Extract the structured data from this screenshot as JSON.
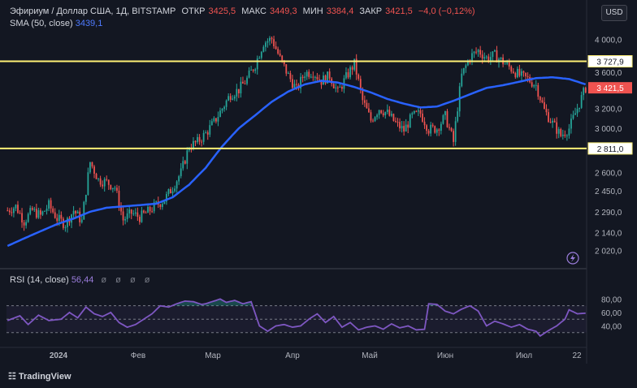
{
  "currency": "USD",
  "brand": "☷ TradingView",
  "ohlc": {
    "open_label": "ОТКР",
    "open": "3425,5",
    "high_label": "МАКС",
    "high": "3449,3",
    "low_label": "МИН",
    "low": "3384,4",
    "close_label": "ЗАКР",
    "close": "3421,5",
    "change": "−4,0 (−0,12%)"
  },
  "indicators": {
    "sma_label": "SMA (50, close)",
    "sma_value": "3439,1",
    "rsi_label": "RSI (14, close)",
    "rsi_value": "56,44",
    "eye_icons": "ø ø ø ø"
  },
  "colors": {
    "background": "#131722",
    "up": "#26a69a",
    "down": "#ef5350",
    "sma": "#2962ff",
    "rsi": "#7e57c2",
    "level": "#fff176",
    "grid": "#2a2e39"
  },
  "chart_data": {
    "type": "candlestick",
    "title": "Эфириум / Доллар США, 1Д, BITSTAMP",
    "x_tick_labels": [
      "2024",
      "Фев",
      "Мар",
      "Апр",
      "Май",
      "Июн",
      "Июл",
      "22"
    ],
    "y_tick_labels": [
      "4 000,0",
      "3 600,0",
      "3 200,0",
      "3 000,0",
      "2 600,0",
      "2 450,0",
      "2 290,0",
      "2 140,0",
      "2 020,0"
    ],
    "y_ticks": [
      4000,
      3600,
      3200,
      3000,
      2600,
      2450,
      2290,
      2140,
      2020
    ],
    "y_scale": "log",
    "ylim": [
      1950,
      4180
    ],
    "levels": [
      {
        "value": 3727.9,
        "label": "3 727,9"
      },
      {
        "value": 2811.0,
        "label": "2 811,0"
      }
    ],
    "last_price": {
      "value": 3421.5,
      "label": "3 421,5"
    },
    "rsi": {
      "ylim": [
        20,
        95
      ],
      "y_tick_labels": [
        "80,00",
        "60,00",
        "40,00"
      ],
      "y_ticks": [
        80,
        60,
        40
      ],
      "bands": [
        70,
        50,
        30
      ],
      "anchors": [
        [
          0,
          48
        ],
        [
          6,
          55
        ],
        [
          10,
          42
        ],
        [
          15,
          56
        ],
        [
          20,
          48
        ],
        [
          26,
          50
        ],
        [
          30,
          60
        ],
        [
          34,
          52
        ],
        [
          38,
          68
        ],
        [
          42,
          58
        ],
        [
          46,
          54
        ],
        [
          50,
          60
        ],
        [
          54,
          45
        ],
        [
          58,
          38
        ],
        [
          62,
          42
        ],
        [
          66,
          50
        ],
        [
          70,
          58
        ],
        [
          74,
          70
        ],
        [
          78,
          68
        ],
        [
          82,
          73
        ],
        [
          86,
          77
        ],
        [
          90,
          76
        ],
        [
          94,
          72
        ],
        [
          96,
          73
        ],
        [
          100,
          77
        ],
        [
          103,
          80
        ],
        [
          106,
          75
        ],
        [
          110,
          78
        ],
        [
          114,
          73
        ],
        [
          118,
          76
        ],
        [
          122,
          40
        ],
        [
          126,
          32
        ],
        [
          130,
          40
        ],
        [
          134,
          42
        ],
        [
          138,
          38
        ],
        [
          142,
          40
        ],
        [
          146,
          50
        ],
        [
          150,
          58
        ],
        [
          154,
          45
        ],
        [
          158,
          54
        ],
        [
          162,
          38
        ],
        [
          166,
          45
        ],
        [
          170,
          34
        ],
        [
          174,
          38
        ],
        [
          178,
          40
        ],
        [
          182,
          35
        ],
        [
          186,
          43
        ],
        [
          190,
          37
        ],
        [
          194,
          40
        ],
        [
          198,
          34
        ],
        [
          202,
          35
        ],
        [
          204,
          73
        ],
        [
          208,
          72
        ],
        [
          212,
          62
        ],
        [
          216,
          58
        ],
        [
          220,
          65
        ],
        [
          224,
          70
        ],
        [
          228,
          62
        ],
        [
          232,
          40
        ],
        [
          236,
          47
        ],
        [
          240,
          43
        ],
        [
          244,
          38
        ],
        [
          248,
          42
        ],
        [
          252,
          35
        ],
        [
          256,
          32
        ],
        [
          258,
          25
        ],
        [
          262,
          33
        ],
        [
          266,
          40
        ],
        [
          270,
          50
        ],
        [
          272,
          64
        ],
        [
          276,
          58
        ],
        [
          280,
          59
        ]
      ]
    },
    "sma_anchors": [
      [
        0,
        2050
      ],
      [
        8,
        2100
      ],
      [
        16,
        2150
      ],
      [
        24,
        2200
      ],
      [
        32,
        2240
      ],
      [
        40,
        2290
      ],
      [
        48,
        2320
      ],
      [
        56,
        2330
      ],
      [
        64,
        2340
      ],
      [
        72,
        2350
      ],
      [
        80,
        2400
      ],
      [
        88,
        2500
      ],
      [
        96,
        2640
      ],
      [
        104,
        2830
      ],
      [
        112,
        3000
      ],
      [
        120,
        3130
      ],
      [
        128,
        3270
      ],
      [
        136,
        3380
      ],
      [
        144,
        3460
      ],
      [
        152,
        3500
      ],
      [
        160,
        3480
      ],
      [
        168,
        3430
      ],
      [
        176,
        3370
      ],
      [
        184,
        3300
      ],
      [
        192,
        3250
      ],
      [
        200,
        3210
      ],
      [
        208,
        3220
      ],
      [
        216,
        3280
      ],
      [
        224,
        3350
      ],
      [
        232,
        3420
      ],
      [
        240,
        3450
      ],
      [
        248,
        3490
      ],
      [
        256,
        3530
      ],
      [
        264,
        3540
      ],
      [
        272,
        3520
      ],
      [
        280,
        3460
      ]
    ],
    "close_anchors": [
      [
        0,
        2300
      ],
      [
        4,
        2330
      ],
      [
        8,
        2220
      ],
      [
        12,
        2300
      ],
      [
        16,
        2260
      ],
      [
        20,
        2340
      ],
      [
        24,
        2240
      ],
      [
        28,
        2200
      ],
      [
        32,
        2300
      ],
      [
        36,
        2220
      ],
      [
        40,
        2690
      ],
      [
        44,
        2540
      ],
      [
        48,
        2520
      ],
      [
        52,
        2480
      ],
      [
        56,
        2230
      ],
      [
        60,
        2280
      ],
      [
        64,
        2250
      ],
      [
        68,
        2290
      ],
      [
        72,
        2340
      ],
      [
        76,
        2380
      ],
      [
        80,
        2480
      ],
      [
        84,
        2600
      ],
      [
        88,
        2830
      ],
      [
        92,
        2870
      ],
      [
        96,
        2950
      ],
      [
        100,
        3060
      ],
      [
        104,
        3200
      ],
      [
        108,
        3350
      ],
      [
        112,
        3400
      ],
      [
        116,
        3520
      ],
      [
        120,
        3690
      ],
      [
        124,
        3960
      ],
      [
        128,
        4010
      ],
      [
        132,
        3760
      ],
      [
        136,
        3560
      ],
      [
        140,
        3400
      ],
      [
        144,
        3590
      ],
      [
        148,
        3600
      ],
      [
        152,
        3500
      ],
      [
        156,
        3560
      ],
      [
        160,
        3370
      ],
      [
        164,
        3540
      ],
      [
        168,
        3700
      ],
      [
        172,
        3280
      ],
      [
        176,
        3080
      ],
      [
        180,
        3200
      ],
      [
        184,
        3150
      ],
      [
        188,
        3050
      ],
      [
        192,
        2980
      ],
      [
        196,
        3120
      ],
      [
        200,
        3150
      ],
      [
        204,
        2990
      ],
      [
        208,
        3000
      ],
      [
        212,
        3120
      ],
      [
        216,
        2870
      ],
      [
        220,
        3560
      ],
      [
        224,
        3780
      ],
      [
        228,
        3860
      ],
      [
        232,
        3770
      ],
      [
        236,
        3800
      ],
      [
        240,
        3720
      ],
      [
        244,
        3640
      ],
      [
        248,
        3560
      ],
      [
        252,
        3520
      ],
      [
        256,
        3450
      ],
      [
        260,
        3180
      ],
      [
        264,
        3050
      ],
      [
        268,
        2930
      ],
      [
        272,
        3000
      ],
      [
        276,
        3200
      ],
      [
        280,
        3421.5
      ]
    ]
  }
}
